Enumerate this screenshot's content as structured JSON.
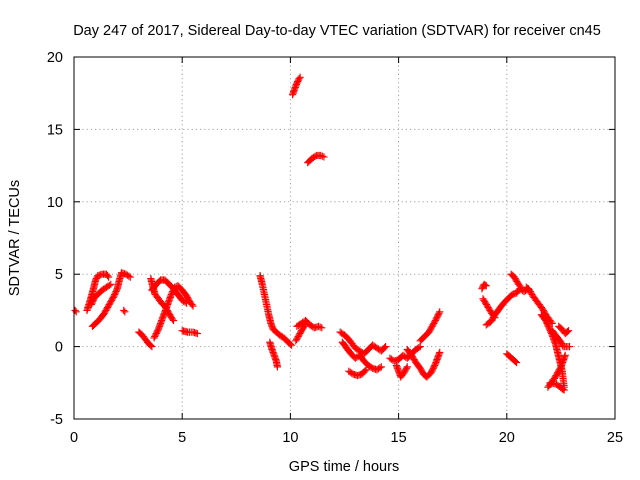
{
  "chart_data": {
    "type": "scatter",
    "title": "Day 247 of 2017, Sidereal Day-to-day VTEC variation (SDTVAR) for receiver cn45",
    "xlabel": "GPS time / hours",
    "ylabel": "SDTVAR / TECUs",
    "xlim": [
      0,
      25
    ],
    "ylim": [
      -5,
      20
    ],
    "xticks": [
      0,
      5,
      10,
      15,
      20,
      25
    ],
    "yticks": [
      -5,
      0,
      5,
      10,
      15,
      20
    ],
    "xtick_labels": [
      "0",
      "5",
      "10",
      "15",
      "20",
      "25"
    ],
    "ytick_labels": [
      "-5",
      "0",
      "5",
      "10",
      "15",
      "20"
    ],
    "grid": true,
    "marker": "plus",
    "color": "#ff0000",
    "series": [
      {
        "name": "cn45",
        "segments": [
          [
            [
              0.05,
              2.5
            ],
            [
              0.1,
              2.4
            ]
          ],
          [
            [
              0.6,
              2.5
            ],
            [
              0.75,
              3.2
            ],
            [
              0.9,
              4.0
            ],
            [
              1.0,
              4.6
            ],
            [
              1.1,
              4.9
            ],
            [
              1.3,
              5.0
            ],
            [
              1.5,
              5.0
            ],
            [
              1.6,
              4.8
            ]
          ],
          [
            [
              0.8,
              2.9
            ],
            [
              0.95,
              3.4
            ],
            [
              1.1,
              3.6
            ],
            [
              1.3,
              3.9
            ],
            [
              1.5,
              4.1
            ],
            [
              1.7,
              4.3
            ]
          ],
          [
            [
              0.85,
              1.4
            ],
            [
              1.0,
              1.6
            ],
            [
              1.2,
              1.9
            ],
            [
              1.4,
              2.3
            ],
            [
              1.55,
              2.7
            ],
            [
              1.7,
              3.1
            ],
            [
              1.85,
              3.5
            ],
            [
              2.0,
              4.0
            ],
            [
              2.1,
              4.6
            ],
            [
              2.2,
              5.1
            ],
            [
              2.4,
              5.0
            ],
            [
              2.6,
              4.8
            ]
          ],
          [
            [
              2.3,
              2.5
            ],
            [
              2.35,
              2.4
            ]
          ],
          [
            [
              3.0,
              1.0
            ],
            [
              3.15,
              0.8
            ],
            [
              3.3,
              0.5
            ],
            [
              3.45,
              0.2
            ],
            [
              3.6,
              0.0
            ]
          ],
          [
            [
              3.55,
              4.7
            ],
            [
              3.65,
              4.1
            ],
            [
              3.75,
              3.6
            ],
            [
              3.9,
              3.3
            ],
            [
              4.05,
              3.0
            ],
            [
              4.2,
              2.8
            ],
            [
              4.35,
              2.4
            ],
            [
              4.5,
              2.0
            ],
            [
              4.6,
              1.8
            ]
          ],
          [
            [
              3.7,
              0.6
            ],
            [
              3.9,
              1.2
            ],
            [
              4.05,
              1.8
            ],
            [
              4.2,
              2.4
            ],
            [
              4.35,
              3.0
            ],
            [
              4.5,
              3.6
            ],
            [
              4.65,
              4.1
            ],
            [
              4.8,
              4.2
            ],
            [
              5.0,
              3.9
            ],
            [
              5.2,
              3.5
            ],
            [
              5.35,
              3.1
            ],
            [
              5.5,
              2.8
            ]
          ],
          [
            [
              3.6,
              3.9
            ],
            [
              3.8,
              4.3
            ],
            [
              4.0,
              4.6
            ],
            [
              4.2,
              4.6
            ],
            [
              4.4,
              4.3
            ],
            [
              4.6,
              4.0
            ],
            [
              4.8,
              3.6
            ],
            [
              5.0,
              3.2
            ],
            [
              5.2,
              3.0
            ]
          ],
          [
            [
              5.0,
              1.1
            ],
            [
              5.25,
              1.0
            ],
            [
              5.5,
              1.0
            ],
            [
              5.7,
              0.9
            ]
          ],
          [
            [
              8.6,
              4.9
            ],
            [
              8.7,
              4.3
            ],
            [
              8.8,
              3.6
            ],
            [
              8.9,
              2.9
            ],
            [
              9.0,
              2.2
            ],
            [
              9.1,
              1.6
            ],
            [
              9.2,
              1.2
            ],
            [
              9.35,
              1.0
            ],
            [
              9.5,
              0.8
            ],
            [
              9.7,
              0.6
            ],
            [
              9.9,
              0.3
            ],
            [
              10.05,
              0.1
            ]
          ],
          [
            [
              9.05,
              0.3
            ],
            [
              9.15,
              -0.2
            ],
            [
              9.25,
              -0.6
            ],
            [
              9.35,
              -1.0
            ],
            [
              9.4,
              -1.4
            ]
          ],
          [
            [
              10.1,
              17.4
            ],
            [
              10.2,
              17.8
            ],
            [
              10.3,
              18.2
            ],
            [
              10.4,
              18.5
            ],
            [
              10.45,
              18.6
            ]
          ],
          [
            [
              10.8,
              12.7
            ],
            [
              11.0,
              13.0
            ],
            [
              11.2,
              13.2
            ],
            [
              11.4,
              13.2
            ],
            [
              11.55,
              13.1
            ]
          ],
          [
            [
              10.3,
              1.4
            ],
            [
              10.5,
              1.6
            ],
            [
              10.7,
              1.8
            ],
            [
              10.9,
              1.5
            ],
            [
              11.1,
              1.3
            ],
            [
              11.3,
              1.4
            ],
            [
              11.45,
              1.3
            ]
          ],
          [
            [
              10.25,
              0.4
            ],
            [
              10.4,
              0.8
            ],
            [
              10.55,
              1.2
            ],
            [
              10.7,
              1.5
            ]
          ],
          [
            [
              12.3,
              1.0
            ],
            [
              12.5,
              0.8
            ],
            [
              12.7,
              0.5
            ],
            [
              12.85,
              0.2
            ],
            [
              13.0,
              -0.1
            ],
            [
              13.2,
              -0.3
            ],
            [
              13.4,
              -0.5
            ],
            [
              13.6,
              -0.2
            ],
            [
              13.8,
              0.1
            ],
            [
              14.0,
              -0.1
            ],
            [
              14.2,
              -0.3
            ],
            [
              14.4,
              0.0
            ]
          ],
          [
            [
              12.4,
              0.3
            ],
            [
              12.6,
              -0.1
            ],
            [
              12.8,
              -0.5
            ],
            [
              13.0,
              -0.8
            ],
            [
              13.2,
              -0.6
            ],
            [
              13.4,
              -1.0
            ],
            [
              13.6,
              -1.3
            ],
            [
              13.8,
              -1.5
            ],
            [
              14.0,
              -1.6
            ],
            [
              14.2,
              -1.4
            ]
          ],
          [
            [
              12.7,
              -1.7
            ],
            [
              12.9,
              -1.9
            ],
            [
              13.1,
              -2.0
            ],
            [
              13.3,
              -1.9
            ],
            [
              13.5,
              -1.6
            ]
          ],
          [
            [
              14.9,
              -1.3
            ],
            [
              15.0,
              -1.7
            ],
            [
              15.1,
              -2.1
            ],
            [
              15.25,
              -1.8
            ],
            [
              15.4,
              -1.4
            ]
          ],
          [
            [
              14.6,
              -0.8
            ],
            [
              14.8,
              -1.0
            ],
            [
              15.0,
              -0.9
            ],
            [
              15.2,
              -0.6
            ],
            [
              15.4,
              -0.8
            ],
            [
              15.6,
              -0.5
            ],
            [
              15.8,
              -0.2
            ],
            [
              16.0,
              0.0
            ]
          ],
          [
            [
              15.4,
              -0.2
            ],
            [
              15.6,
              -0.6
            ],
            [
              15.8,
              -1.1
            ],
            [
              16.0,
              -1.5
            ],
            [
              16.15,
              -1.9
            ],
            [
              16.3,
              -2.1
            ],
            [
              16.5,
              -1.8
            ],
            [
              16.7,
              -1.2
            ],
            [
              16.9,
              -0.4
            ]
          ],
          [
            [
              16.0,
              0.4
            ],
            [
              16.2,
              0.7
            ],
            [
              16.4,
              1.0
            ],
            [
              16.55,
              1.4
            ],
            [
              16.7,
              1.8
            ],
            [
              16.8,
              2.1
            ],
            [
              16.9,
              2.4
            ]
          ],
          [
            [
              18.85,
              4.0
            ],
            [
              18.95,
              4.3
            ],
            [
              19.05,
              4.2
            ]
          ],
          [
            [
              18.9,
              3.3
            ],
            [
              19.1,
              2.8
            ],
            [
              19.3,
              2.3
            ],
            [
              19.45,
              2.0
            ]
          ],
          [
            [
              19.05,
              1.5
            ],
            [
              19.25,
              1.7
            ],
            [
              19.45,
              2.2
            ],
            [
              19.65,
              2.6
            ],
            [
              19.85,
              3.0
            ],
            [
              20.05,
              3.3
            ],
            [
              20.25,
              3.6
            ],
            [
              20.45,
              3.7
            ],
            [
              20.6,
              4.0
            ],
            [
              20.8,
              3.8
            ],
            [
              21.0,
              4.0
            ]
          ],
          [
            [
              20.2,
              5.0
            ],
            [
              20.35,
              4.8
            ],
            [
              20.5,
              4.4
            ],
            [
              20.65,
              4.1
            ]
          ],
          [
            [
              20.0,
              -0.5
            ],
            [
              20.15,
              -0.7
            ],
            [
              20.3,
              -0.9
            ],
            [
              20.45,
              -1.1
            ]
          ],
          [
            [
              20.9,
              4.1
            ],
            [
              21.05,
              3.9
            ],
            [
              21.2,
              3.5
            ],
            [
              21.35,
              3.2
            ],
            [
              21.5,
              2.9
            ],
            [
              21.65,
              2.6
            ],
            [
              21.8,
              2.2
            ],
            [
              21.95,
              1.9
            ],
            [
              22.1,
              1.6
            ]
          ],
          [
            [
              21.6,
              2.2
            ],
            [
              21.8,
              1.8
            ],
            [
              21.95,
              1.3
            ],
            [
              22.1,
              0.8
            ],
            [
              22.25,
              0.2
            ],
            [
              22.35,
              -0.4
            ],
            [
              22.45,
              -1.0
            ],
            [
              22.55,
              -1.6
            ],
            [
              22.6,
              -2.2
            ],
            [
              22.65,
              -2.8
            ]
          ],
          [
            [
              21.9,
              -2.8
            ],
            [
              22.05,
              -2.5
            ],
            [
              22.2,
              -2.2
            ],
            [
              22.35,
              -1.8
            ],
            [
              22.5,
              -1.4
            ],
            [
              22.6,
              -1.0
            ],
            [
              22.7,
              -0.6
            ]
          ],
          [
            [
              22.1,
              1.1
            ],
            [
              22.3,
              0.7
            ],
            [
              22.5,
              0.3
            ],
            [
              22.6,
              0.0
            ],
            [
              22.75,
              0.0
            ],
            [
              22.9,
              0.0
            ]
          ],
          [
            [
              22.4,
              1.4
            ],
            [
              22.55,
              1.2
            ],
            [
              22.7,
              0.9
            ],
            [
              22.85,
              1.1
            ]
          ],
          [
            [
              22.0,
              -2.5
            ],
            [
              22.3,
              -2.6
            ],
            [
              22.55,
              -2.9
            ],
            [
              22.65,
              -3.0
            ]
          ]
        ]
      }
    ]
  }
}
